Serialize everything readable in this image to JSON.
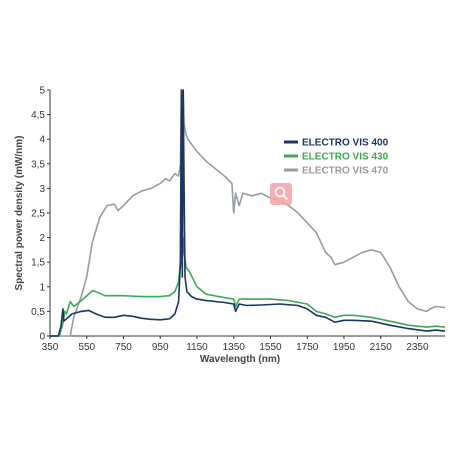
{
  "chart_data": {
    "type": "line",
    "title": "",
    "xlabel": "Wavelength (nm)",
    "ylabel": "Spectral power density (mW/nm)",
    "xlim": [
      350,
      2500
    ],
    "ylim": [
      0,
      5
    ],
    "x_ticks": [
      350,
      550,
      750,
      950,
      1150,
      1350,
      1550,
      1750,
      1950,
      2150,
      2350
    ],
    "x_tick_labels": [
      "350",
      "550",
      "750",
      "950",
      "1150",
      "1350",
      "1550",
      "1750",
      "1950",
      "2150",
      "2350"
    ],
    "y_ticks": [
      0,
      0.5,
      1,
      1.5,
      2,
      2.5,
      3,
      3.5,
      4,
      4.5,
      5
    ],
    "y_tick_labels": [
      "0",
      "0,5",
      "1",
      "1,5",
      "2",
      "2,5",
      "3",
      "3,5",
      "4",
      "4,5",
      "5"
    ],
    "grid": false,
    "legend_position": "top-right",
    "series": [
      {
        "name": "ELECTRO VIS 400",
        "color": "#1e3461",
        "points": [
          [
            350,
            0
          ],
          [
            395,
            0
          ],
          [
            410,
            0.2
          ],
          [
            420,
            0.55
          ],
          [
            425,
            0.3
          ],
          [
            440,
            0.35
          ],
          [
            470,
            0.45
          ],
          [
            520,
            0.5
          ],
          [
            560,
            0.52
          ],
          [
            600,
            0.45
          ],
          [
            650,
            0.38
          ],
          [
            700,
            0.38
          ],
          [
            750,
            0.42
          ],
          [
            800,
            0.4
          ],
          [
            850,
            0.36
          ],
          [
            900,
            0.34
          ],
          [
            950,
            0.33
          ],
          [
            1000,
            0.35
          ],
          [
            1030,
            0.45
          ],
          [
            1050,
            0.7
          ],
          [
            1060,
            1.5
          ],
          [
            1065,
            5
          ],
          [
            1070,
            1.2
          ],
          [
            1075,
            5
          ],
          [
            1080,
            3
          ],
          [
            1085,
            1.2
          ],
          [
            1095,
            0.9
          ],
          [
            1120,
            0.8
          ],
          [
            1150,
            0.75
          ],
          [
            1200,
            0.72
          ],
          [
            1300,
            0.68
          ],
          [
            1350,
            0.65
          ],
          [
            1360,
            0.5
          ],
          [
            1380,
            0.65
          ],
          [
            1420,
            0.62
          ],
          [
            1500,
            0.63
          ],
          [
            1600,
            0.65
          ],
          [
            1700,
            0.62
          ],
          [
            1750,
            0.55
          ],
          [
            1800,
            0.42
          ],
          [
            1850,
            0.38
          ],
          [
            1900,
            0.28
          ],
          [
            1950,
            0.32
          ],
          [
            2000,
            0.32
          ],
          [
            2100,
            0.3
          ],
          [
            2200,
            0.22
          ],
          [
            2300,
            0.15
          ],
          [
            2400,
            0.1
          ],
          [
            2450,
            0.12
          ],
          [
            2500,
            0.1
          ]
        ]
      },
      {
        "name": "ELECTRO VIS 430",
        "color": "#3aaa52",
        "points": [
          [
            350,
            0
          ],
          [
            400,
            0
          ],
          [
            420,
            0.25
          ],
          [
            430,
            0.5
          ],
          [
            440,
            0.45
          ],
          [
            460,
            0.7
          ],
          [
            480,
            0.6
          ],
          [
            520,
            0.72
          ],
          [
            560,
            0.85
          ],
          [
            580,
            0.92
          ],
          [
            600,
            0.9
          ],
          [
            650,
            0.82
          ],
          [
            750,
            0.82
          ],
          [
            850,
            0.8
          ],
          [
            950,
            0.8
          ],
          [
            1000,
            0.82
          ],
          [
            1030,
            0.9
          ],
          [
            1050,
            1.1
          ],
          [
            1060,
            1.5
          ],
          [
            1065,
            4.2
          ],
          [
            1068,
            1.4
          ],
          [
            1075,
            2
          ],
          [
            1080,
            1.7
          ],
          [
            1090,
            1.4
          ],
          [
            1110,
            1.3
          ],
          [
            1150,
            1
          ],
          [
            1200,
            0.85
          ],
          [
            1300,
            0.78
          ],
          [
            1350,
            0.75
          ],
          [
            1360,
            0.6
          ],
          [
            1380,
            0.75
          ],
          [
            1450,
            0.75
          ],
          [
            1550,
            0.75
          ],
          [
            1650,
            0.72
          ],
          [
            1750,
            0.65
          ],
          [
            1800,
            0.5
          ],
          [
            1850,
            0.45
          ],
          [
            1900,
            0.38
          ],
          [
            1950,
            0.42
          ],
          [
            2000,
            0.42
          ],
          [
            2100,
            0.38
          ],
          [
            2200,
            0.3
          ],
          [
            2300,
            0.22
          ],
          [
            2400,
            0.18
          ],
          [
            2450,
            0.2
          ],
          [
            2500,
            0.18
          ]
        ]
      },
      {
        "name": "ELECTRO VIS 470",
        "color": "#959ca2",
        "points": [
          [
            350,
            0
          ],
          [
            460,
            0
          ],
          [
            480,
            0.4
          ],
          [
            500,
            0.6
          ],
          [
            520,
            0.8
          ],
          [
            550,
            1.2
          ],
          [
            580,
            1.9
          ],
          [
            620,
            2.4
          ],
          [
            660,
            2.65
          ],
          [
            700,
            2.68
          ],
          [
            720,
            2.55
          ],
          [
            750,
            2.65
          ],
          [
            800,
            2.85
          ],
          [
            850,
            2.95
          ],
          [
            900,
            3
          ],
          [
            950,
            3.1
          ],
          [
            980,
            3.2
          ],
          [
            1000,
            3.15
          ],
          [
            1030,
            3.3
          ],
          [
            1050,
            3.25
          ],
          [
            1060,
            3.5
          ],
          [
            1065,
            5
          ],
          [
            1070,
            4.8
          ],
          [
            1075,
            5
          ],
          [
            1080,
            4.3
          ],
          [
            1090,
            4.1
          ],
          [
            1100,
            4
          ],
          [
            1150,
            3.75
          ],
          [
            1200,
            3.55
          ],
          [
            1250,
            3.4
          ],
          [
            1300,
            3.25
          ],
          [
            1340,
            3.1
          ],
          [
            1350,
            2.5
          ],
          [
            1360,
            2.9
          ],
          [
            1380,
            2.65
          ],
          [
            1400,
            2.9
          ],
          [
            1450,
            2.85
          ],
          [
            1500,
            2.9
          ],
          [
            1550,
            2.8
          ],
          [
            1600,
            2.75
          ],
          [
            1650,
            2.65
          ],
          [
            1700,
            2.5
          ],
          [
            1750,
            2.3
          ],
          [
            1800,
            2.1
          ],
          [
            1850,
            1.7
          ],
          [
            1880,
            1.6
          ],
          [
            1900,
            1.45
          ],
          [
            1950,
            1.5
          ],
          [
            2000,
            1.6
          ],
          [
            2050,
            1.7
          ],
          [
            2100,
            1.75
          ],
          [
            2150,
            1.7
          ],
          [
            2200,
            1.4
          ],
          [
            2250,
            1
          ],
          [
            2300,
            0.7
          ],
          [
            2350,
            0.55
          ],
          [
            2400,
            0.5
          ],
          [
            2420,
            0.55
          ],
          [
            2450,
            0.6
          ],
          [
            2500,
            0.58
          ]
        ]
      }
    ]
  }
}
